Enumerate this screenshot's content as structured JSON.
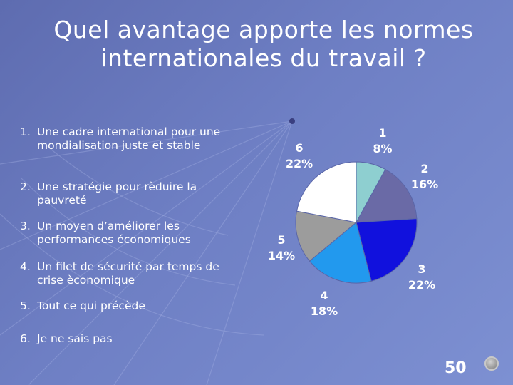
{
  "title": "Quel avantage apporte les normes internationales du travail ?",
  "options": [
    {
      "num": "1.",
      "text": "Une cadre international pour une mondialisation juste et stable"
    },
    {
      "num": "2.",
      "text": "Une stratégie pour rèduire la pauvreté"
    },
    {
      "num": "3.",
      "text": "Un moyen d’améliorer les performances économiques"
    },
    {
      "num": "4.",
      "text": "Un filet de sécurité par temps de crise èconomique"
    },
    {
      "num": "5.",
      "text": "Tout ce qui précède"
    },
    {
      "num": "6.",
      "text": "Je ne sais pas"
    }
  ],
  "page_number": "50",
  "chart_data": {
    "type": "pie",
    "slices": [
      {
        "label": "1",
        "value": 8,
        "pct": "8%",
        "color": "#8ecfd0"
      },
      {
        "label": "2",
        "value": 16,
        "pct": "16%",
        "color": "#6a6aa6"
      },
      {
        "label": "3",
        "value": 22,
        "pct": "22%",
        "color": "#1111dd"
      },
      {
        "label": "4",
        "value": 18,
        "pct": "18%",
        "color": "#2299ee"
      },
      {
        "label": "5",
        "value": 14,
        "pct": "14%",
        "color": "#9c9c9c"
      },
      {
        "label": "6",
        "value": 22,
        "pct": "22%",
        "color": "#ffffff"
      }
    ]
  },
  "colors": {
    "background": "#6e7fc4",
    "text": "#ffffff"
  },
  "icons": {
    "nav": "circle-nav-icon"
  }
}
